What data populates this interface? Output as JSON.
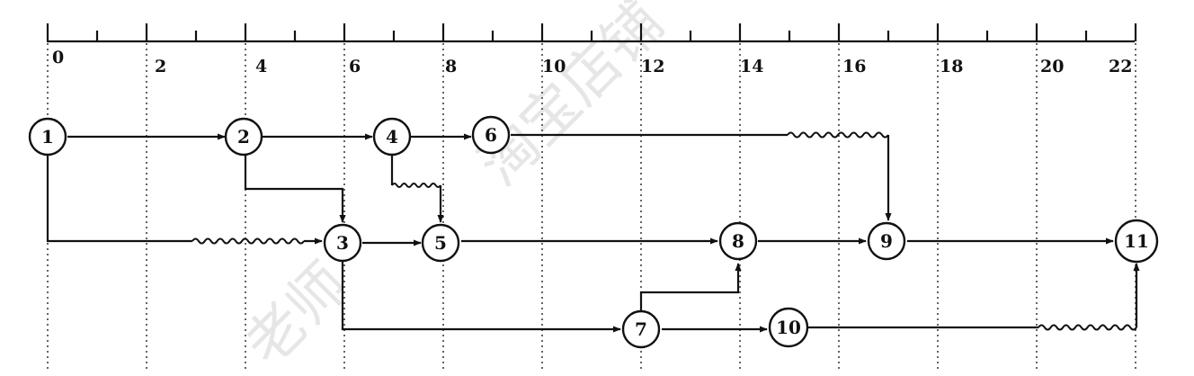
{
  "timescale": {
    "labels": [
      "0",
      "2",
      "4",
      "6",
      "8",
      "10",
      "12",
      "14",
      "16",
      "18",
      "20",
      "22"
    ],
    "values": [
      0,
      2,
      4,
      6,
      8,
      10,
      12,
      14,
      16,
      18,
      20,
      22
    ]
  },
  "nodes": [
    {
      "id": "1",
      "label": "1",
      "time": 0,
      "lane": 0
    },
    {
      "id": "2",
      "label": "2",
      "time": 4,
      "lane": 0
    },
    {
      "id": "4",
      "label": "4",
      "time": 7,
      "lane": 0
    },
    {
      "id": "6",
      "label": "6",
      "time": 9,
      "lane": 0
    },
    {
      "id": "3",
      "label": "3",
      "time": 6,
      "lane": 1
    },
    {
      "id": "5",
      "label": "5",
      "time": 8,
      "lane": 1
    },
    {
      "id": "8",
      "label": "8",
      "time": 14,
      "lane": 1
    },
    {
      "id": "9",
      "label": "9",
      "time": 17,
      "lane": 1
    },
    {
      "id": "11",
      "label": "11",
      "time": 22,
      "lane": 1
    },
    {
      "id": "7",
      "label": "7",
      "time": 12,
      "lane": 2
    },
    {
      "id": "10",
      "label": "10",
      "time": 15,
      "lane": 2
    }
  ],
  "watermark": [
    "淘宝店铺",
    "老师"
  ]
}
